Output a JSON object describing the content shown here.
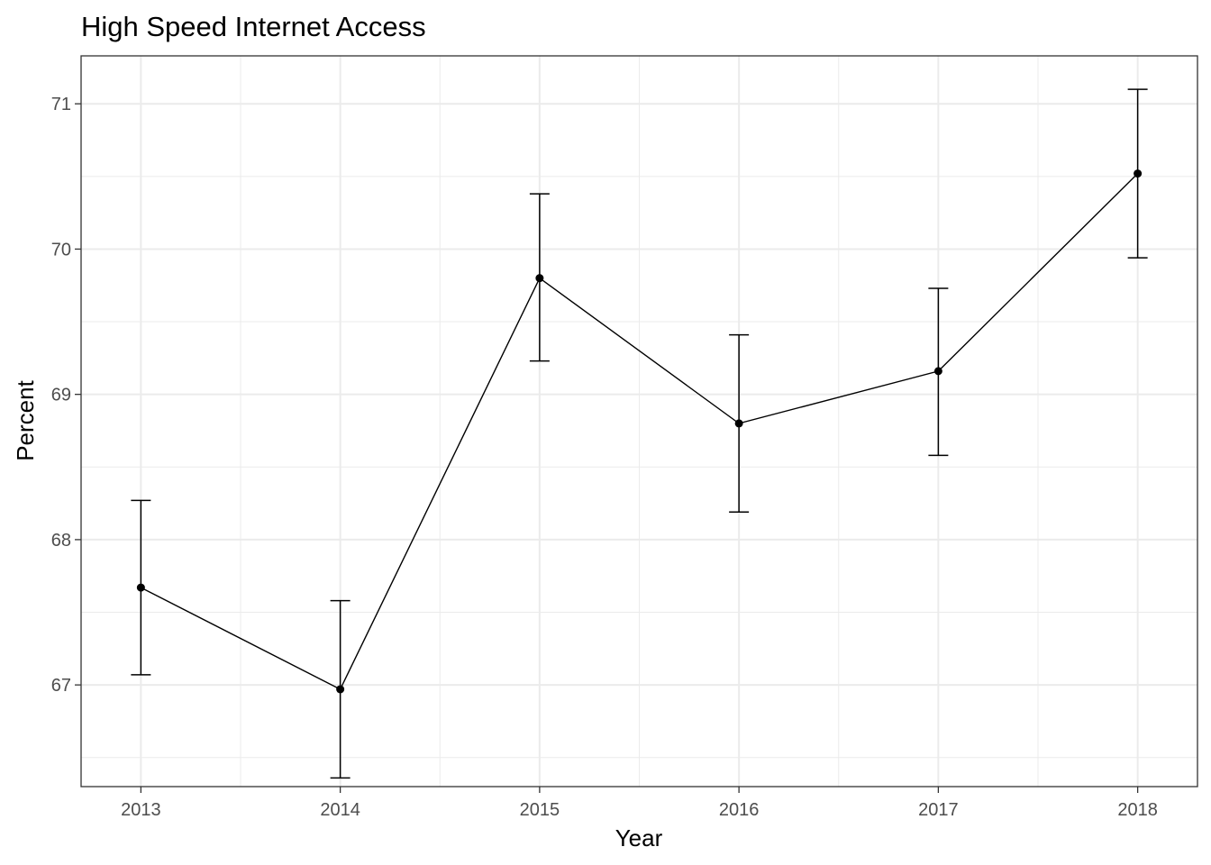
{
  "chart_data": {
    "type": "line",
    "title": "High Speed Internet Access",
    "xlabel": "Year",
    "ylabel": "Percent",
    "x": [
      2013,
      2014,
      2015,
      2016,
      2017,
      2018
    ],
    "x_tick_labels": [
      "2013",
      "2014",
      "2015",
      "2016",
      "2017",
      "2018"
    ],
    "y_ticks": [
      67,
      68,
      69,
      70,
      71
    ],
    "y_tick_labels": [
      "67",
      "68",
      "69",
      "70",
      "71"
    ],
    "xlim": [
      2012.7,
      2018.3
    ],
    "ylim": [
      66.3,
      71.33
    ],
    "grid": true,
    "series": [
      {
        "values": [
          67.67,
          66.97,
          69.8,
          68.8,
          69.16,
          70.52
        ],
        "error_low": [
          67.07,
          66.36,
          69.23,
          68.19,
          68.58,
          69.94
        ],
        "error_high": [
          68.27,
          67.58,
          70.38,
          69.41,
          69.73,
          71.1
        ],
        "color": "#000000"
      }
    ]
  }
}
